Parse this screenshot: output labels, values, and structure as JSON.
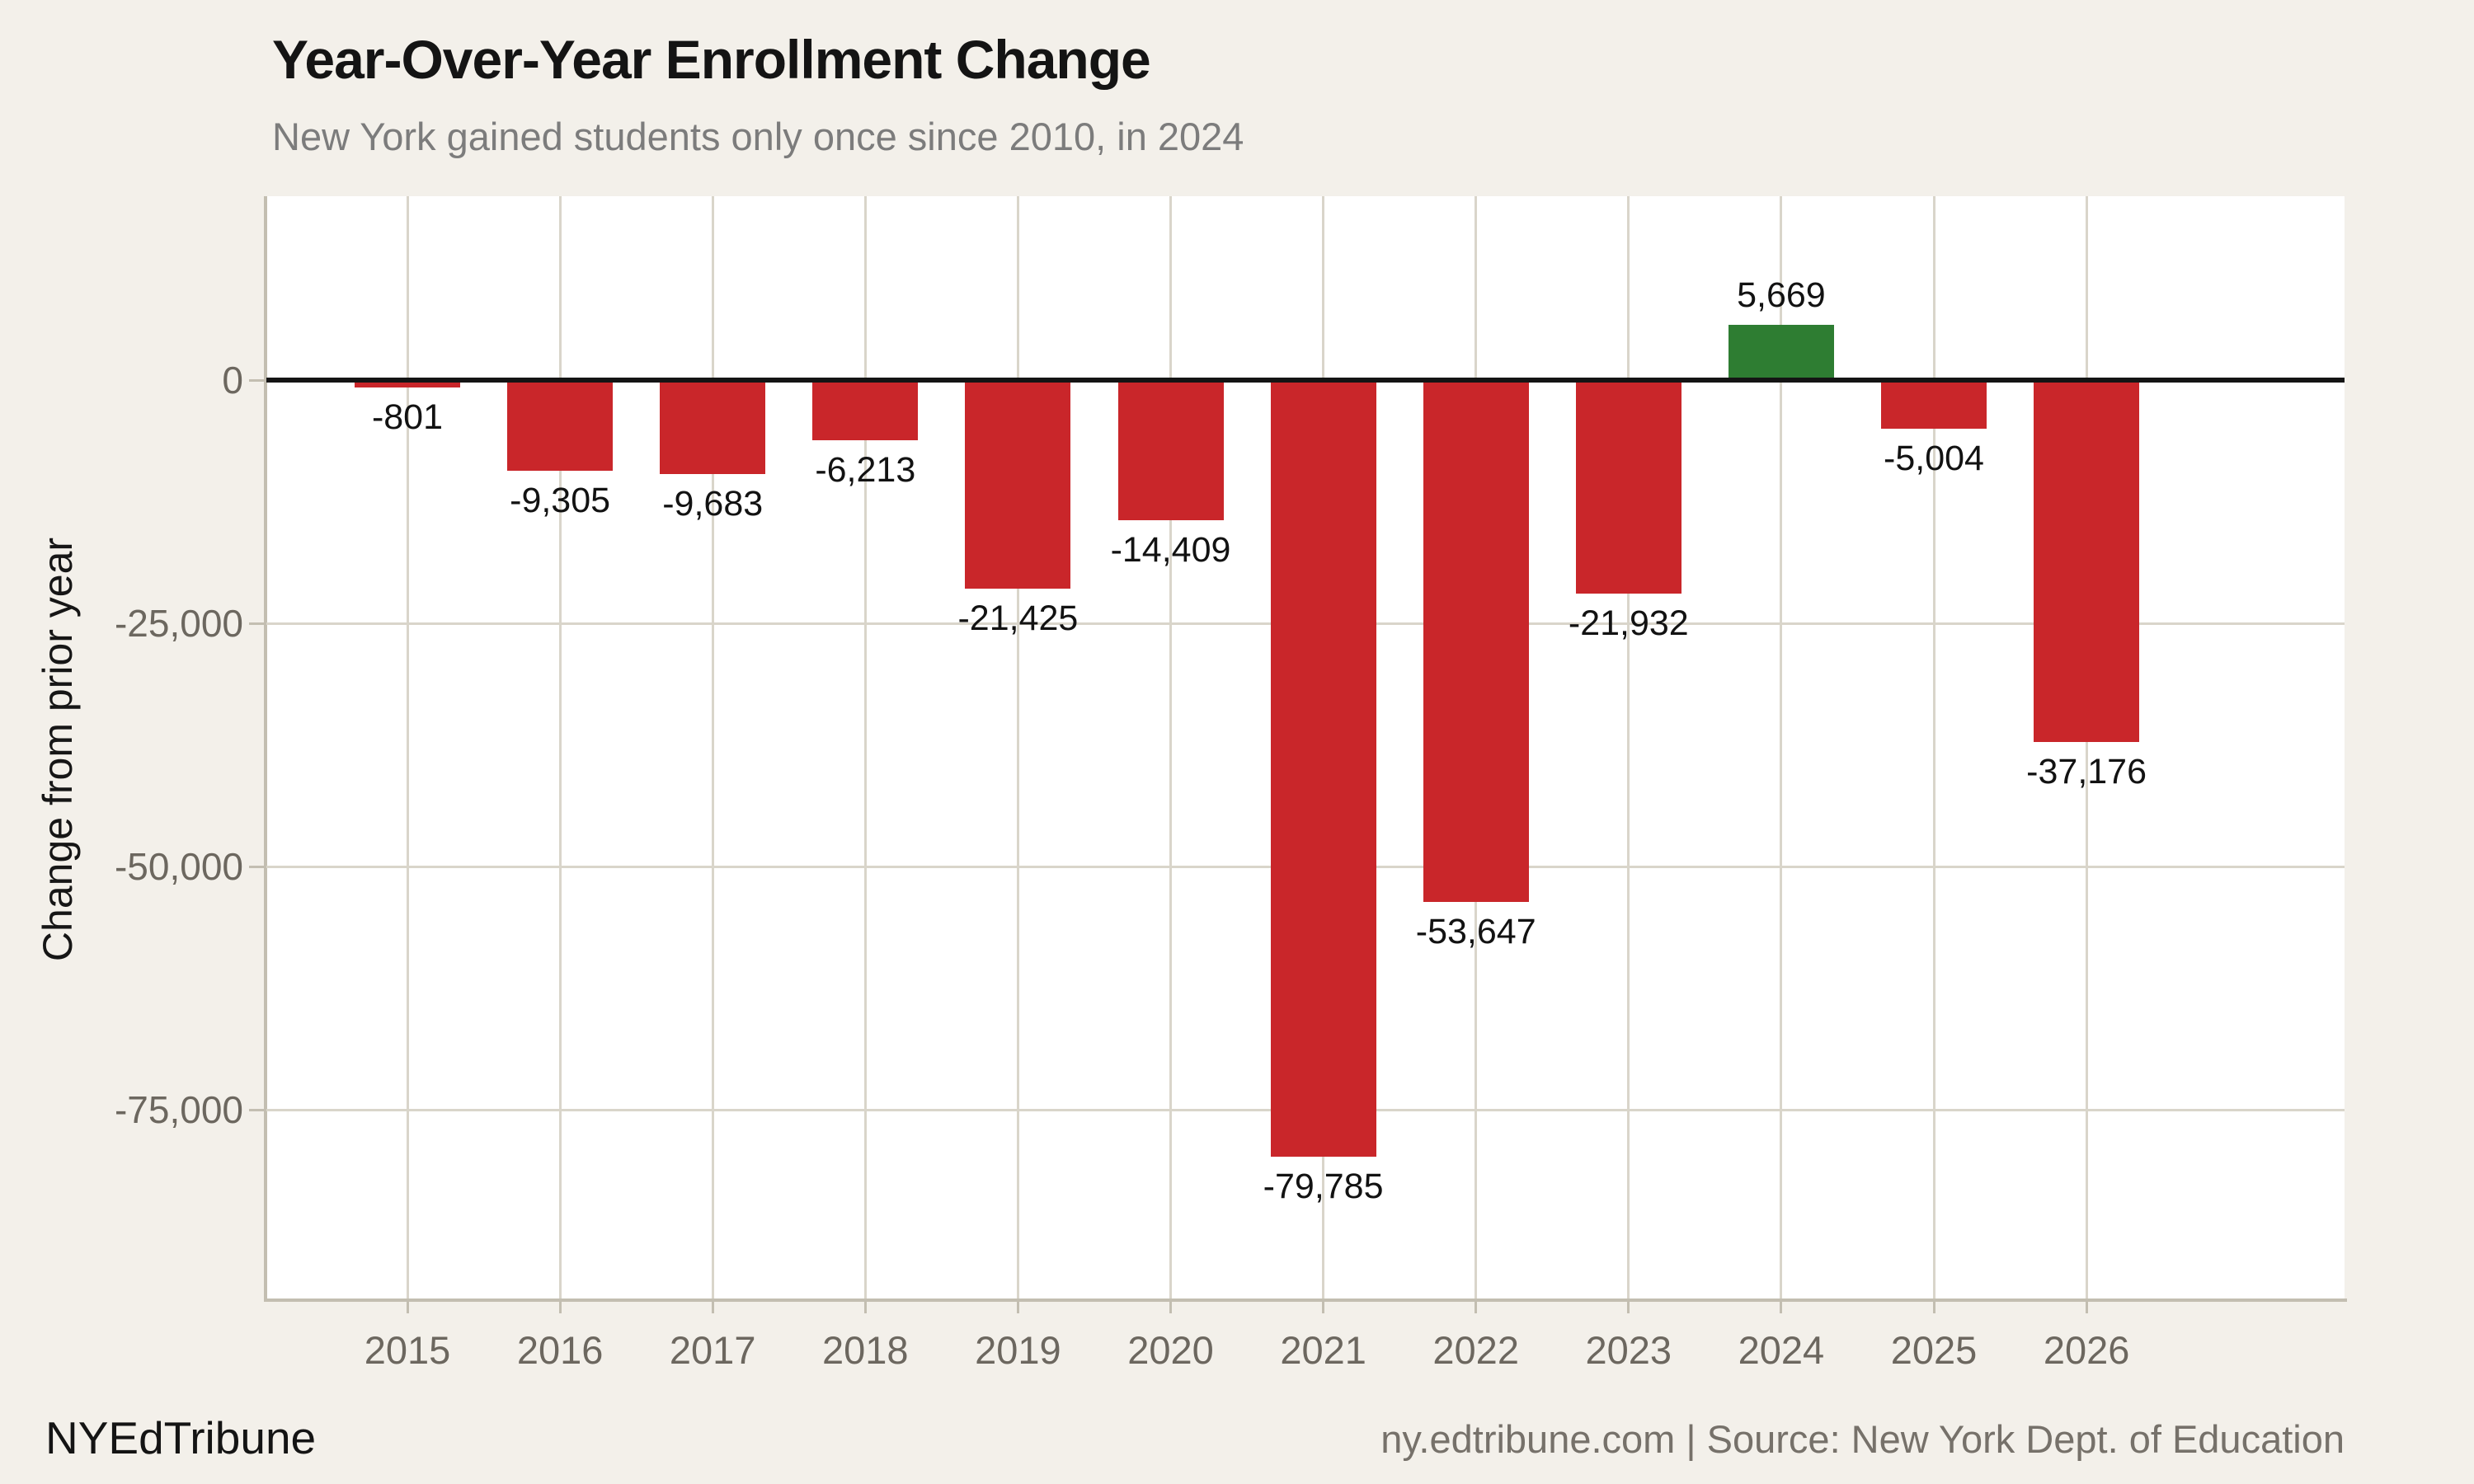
{
  "header": {
    "title": "Year-Over-Year Enrollment Change",
    "subtitle": "New York gained students only once since 2010, in 2024"
  },
  "footer": {
    "brand": "NYEdTribune",
    "attribution": "ny.edtribune.com | Source: New York Dept. of Education"
  },
  "chart_data": {
    "type": "bar",
    "title": "Year-Over-Year Enrollment Change",
    "subtitle": "New York gained students only once since 2010, in 2024",
    "categories": [
      "2015",
      "2016",
      "2017",
      "2018",
      "2019",
      "2020",
      "2021",
      "2022",
      "2023",
      "2024",
      "2025",
      "2026"
    ],
    "values": [
      -801,
      -9305,
      -9683,
      -6213,
      -21425,
      -14409,
      -79785,
      -53647,
      -21932,
      5669,
      -5004,
      -37176
    ],
    "value_labels": [
      "-801",
      "-9,305",
      "-9,683",
      "-6,213",
      "-21,425",
      "-14,409",
      "-79,785",
      "-53,647",
      "-21,932",
      "5,669",
      "-5,004",
      "-37,176"
    ],
    "xlabel": "",
    "ylabel": "Change from prior year",
    "yticks": {
      "values": [
        0,
        -25000,
        -50000,
        -75000
      ],
      "labels": [
        "0",
        "-25,000",
        "-50,000",
        "-75,000"
      ]
    },
    "ylim": [
      -94400,
      18900
    ],
    "grid": "on",
    "legend": "none",
    "zero_baseline": true,
    "colors": {
      "negative_bar": "#c9262a",
      "positive_bar": "#2e7d32",
      "zero_line": "#141414",
      "page_background": "#f3f0ea",
      "plot_background": "#ffffff",
      "gridline": "#d9d5ca",
      "axis_line": "#c3beb1",
      "tick_label": "#6c675f",
      "subtitle_text": "#7c7c7c",
      "attribution_text": "#76716a"
    }
  }
}
